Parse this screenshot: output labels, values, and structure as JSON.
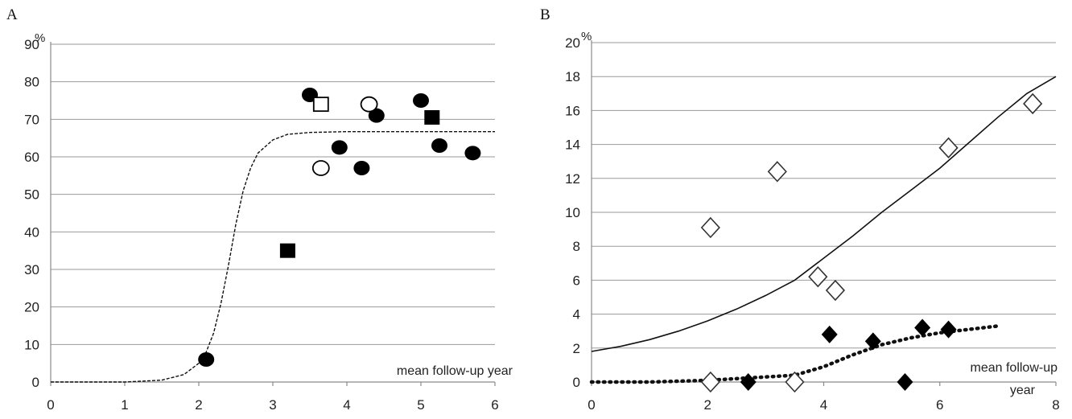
{
  "chart_data": [
    {
      "panel": "A",
      "type": "scatter",
      "unit_label": "%",
      "annotation": "mean follow-up year",
      "xlim": [
        0,
        6
      ],
      "ylim": [
        0,
        90
      ],
      "x_ticks": [
        "0",
        "1",
        "2",
        "3",
        "4",
        "5",
        "6"
      ],
      "y_ticks": [
        "0",
        "10",
        "20",
        "30",
        "40",
        "50",
        "60",
        "70",
        "80",
        "90"
      ],
      "grid": true,
      "series": [
        {
          "marker": "filled-circle",
          "points": [
            [
              2.1,
              6
            ],
            [
              3.5,
              76.5
            ],
            [
              3.9,
              62.5
            ],
            [
              4.2,
              57
            ],
            [
              4.4,
              71
            ],
            [
              5.0,
              75
            ],
            [
              5.25,
              63
            ],
            [
              5.7,
              61
            ]
          ]
        },
        {
          "marker": "open-circle",
          "points": [
            [
              3.65,
              57
            ],
            [
              4.3,
              74
            ]
          ]
        },
        {
          "marker": "filled-square",
          "points": [
            [
              3.2,
              35
            ],
            [
              5.15,
              70.5
            ]
          ]
        },
        {
          "marker": "open-square",
          "points": [
            [
              3.65,
              74
            ]
          ]
        }
      ],
      "fit_curve": {
        "style": "dashed",
        "points": [
          [
            0,
            0
          ],
          [
            1,
            0
          ],
          [
            1.5,
            0.5
          ],
          [
            1.8,
            2
          ],
          [
            2.0,
            5
          ],
          [
            2.1,
            8
          ],
          [
            2.2,
            13
          ],
          [
            2.3,
            21
          ],
          [
            2.4,
            31
          ],
          [
            2.5,
            42
          ],
          [
            2.6,
            51
          ],
          [
            2.7,
            57
          ],
          [
            2.8,
            61
          ],
          [
            3.0,
            64.5
          ],
          [
            3.2,
            66
          ],
          [
            3.5,
            66.5
          ],
          [
            4.0,
            66.7
          ],
          [
            6.0,
            66.7
          ]
        ]
      }
    },
    {
      "panel": "B",
      "type": "scatter",
      "unit_label": "%",
      "annotation": [
        "mean follow-up",
        "year"
      ],
      "xlim": [
        0,
        8
      ],
      "ylim": [
        0,
        20
      ],
      "x_ticks": [
        "0",
        "2",
        "4",
        "6",
        "8"
      ],
      "y_ticks": [
        "0",
        "2",
        "4",
        "6",
        "8",
        "10",
        "12",
        "14",
        "16",
        "18",
        "20"
      ],
      "grid": true,
      "series": [
        {
          "marker": "open-diamond",
          "points": [
            [
              2.05,
              0
            ],
            [
              2.05,
              9.1
            ],
            [
              3.2,
              12.4
            ],
            [
              3.5,
              0
            ],
            [
              3.9,
              6.2
            ],
            [
              4.2,
              5.4
            ],
            [
              6.15,
              13.8
            ],
            [
              7.6,
              16.4
            ]
          ]
        },
        {
          "marker": "filled-diamond",
          "points": [
            [
              2.7,
              0
            ],
            [
              4.1,
              2.8
            ],
            [
              4.85,
              2.4
            ],
            [
              5.4,
              0
            ],
            [
              5.7,
              3.2
            ],
            [
              6.15,
              3.1
            ]
          ]
        }
      ],
      "fit_curves": [
        {
          "style": "solid",
          "points": [
            [
              0,
              1.8
            ],
            [
              0.5,
              2.1
            ],
            [
              1,
              2.5
            ],
            [
              1.5,
              3.0
            ],
            [
              2,
              3.6
            ],
            [
              2.5,
              4.3
            ],
            [
              3,
              5.1
            ],
            [
              3.5,
              6.0
            ],
            [
              4,
              7.3
            ],
            [
              4.5,
              8.6
            ],
            [
              5,
              10.0
            ],
            [
              5.5,
              11.3
            ],
            [
              6,
              12.6
            ],
            [
              6.5,
              14.1
            ],
            [
              7,
              15.6
            ],
            [
              7.5,
              17.0
            ],
            [
              8,
              18.0
            ]
          ]
        },
        {
          "style": "dotted",
          "points": [
            [
              0,
              0
            ],
            [
              1,
              0
            ],
            [
              2,
              0.1
            ],
            [
              3,
              0.3
            ],
            [
              3.5,
              0.4
            ],
            [
              4,
              0.9
            ],
            [
              4.5,
              1.6
            ],
            [
              5,
              2.2
            ],
            [
              5.5,
              2.6
            ],
            [
              6,
              2.9
            ],
            [
              6.5,
              3.1
            ],
            [
              7,
              3.3
            ]
          ]
        }
      ]
    }
  ]
}
